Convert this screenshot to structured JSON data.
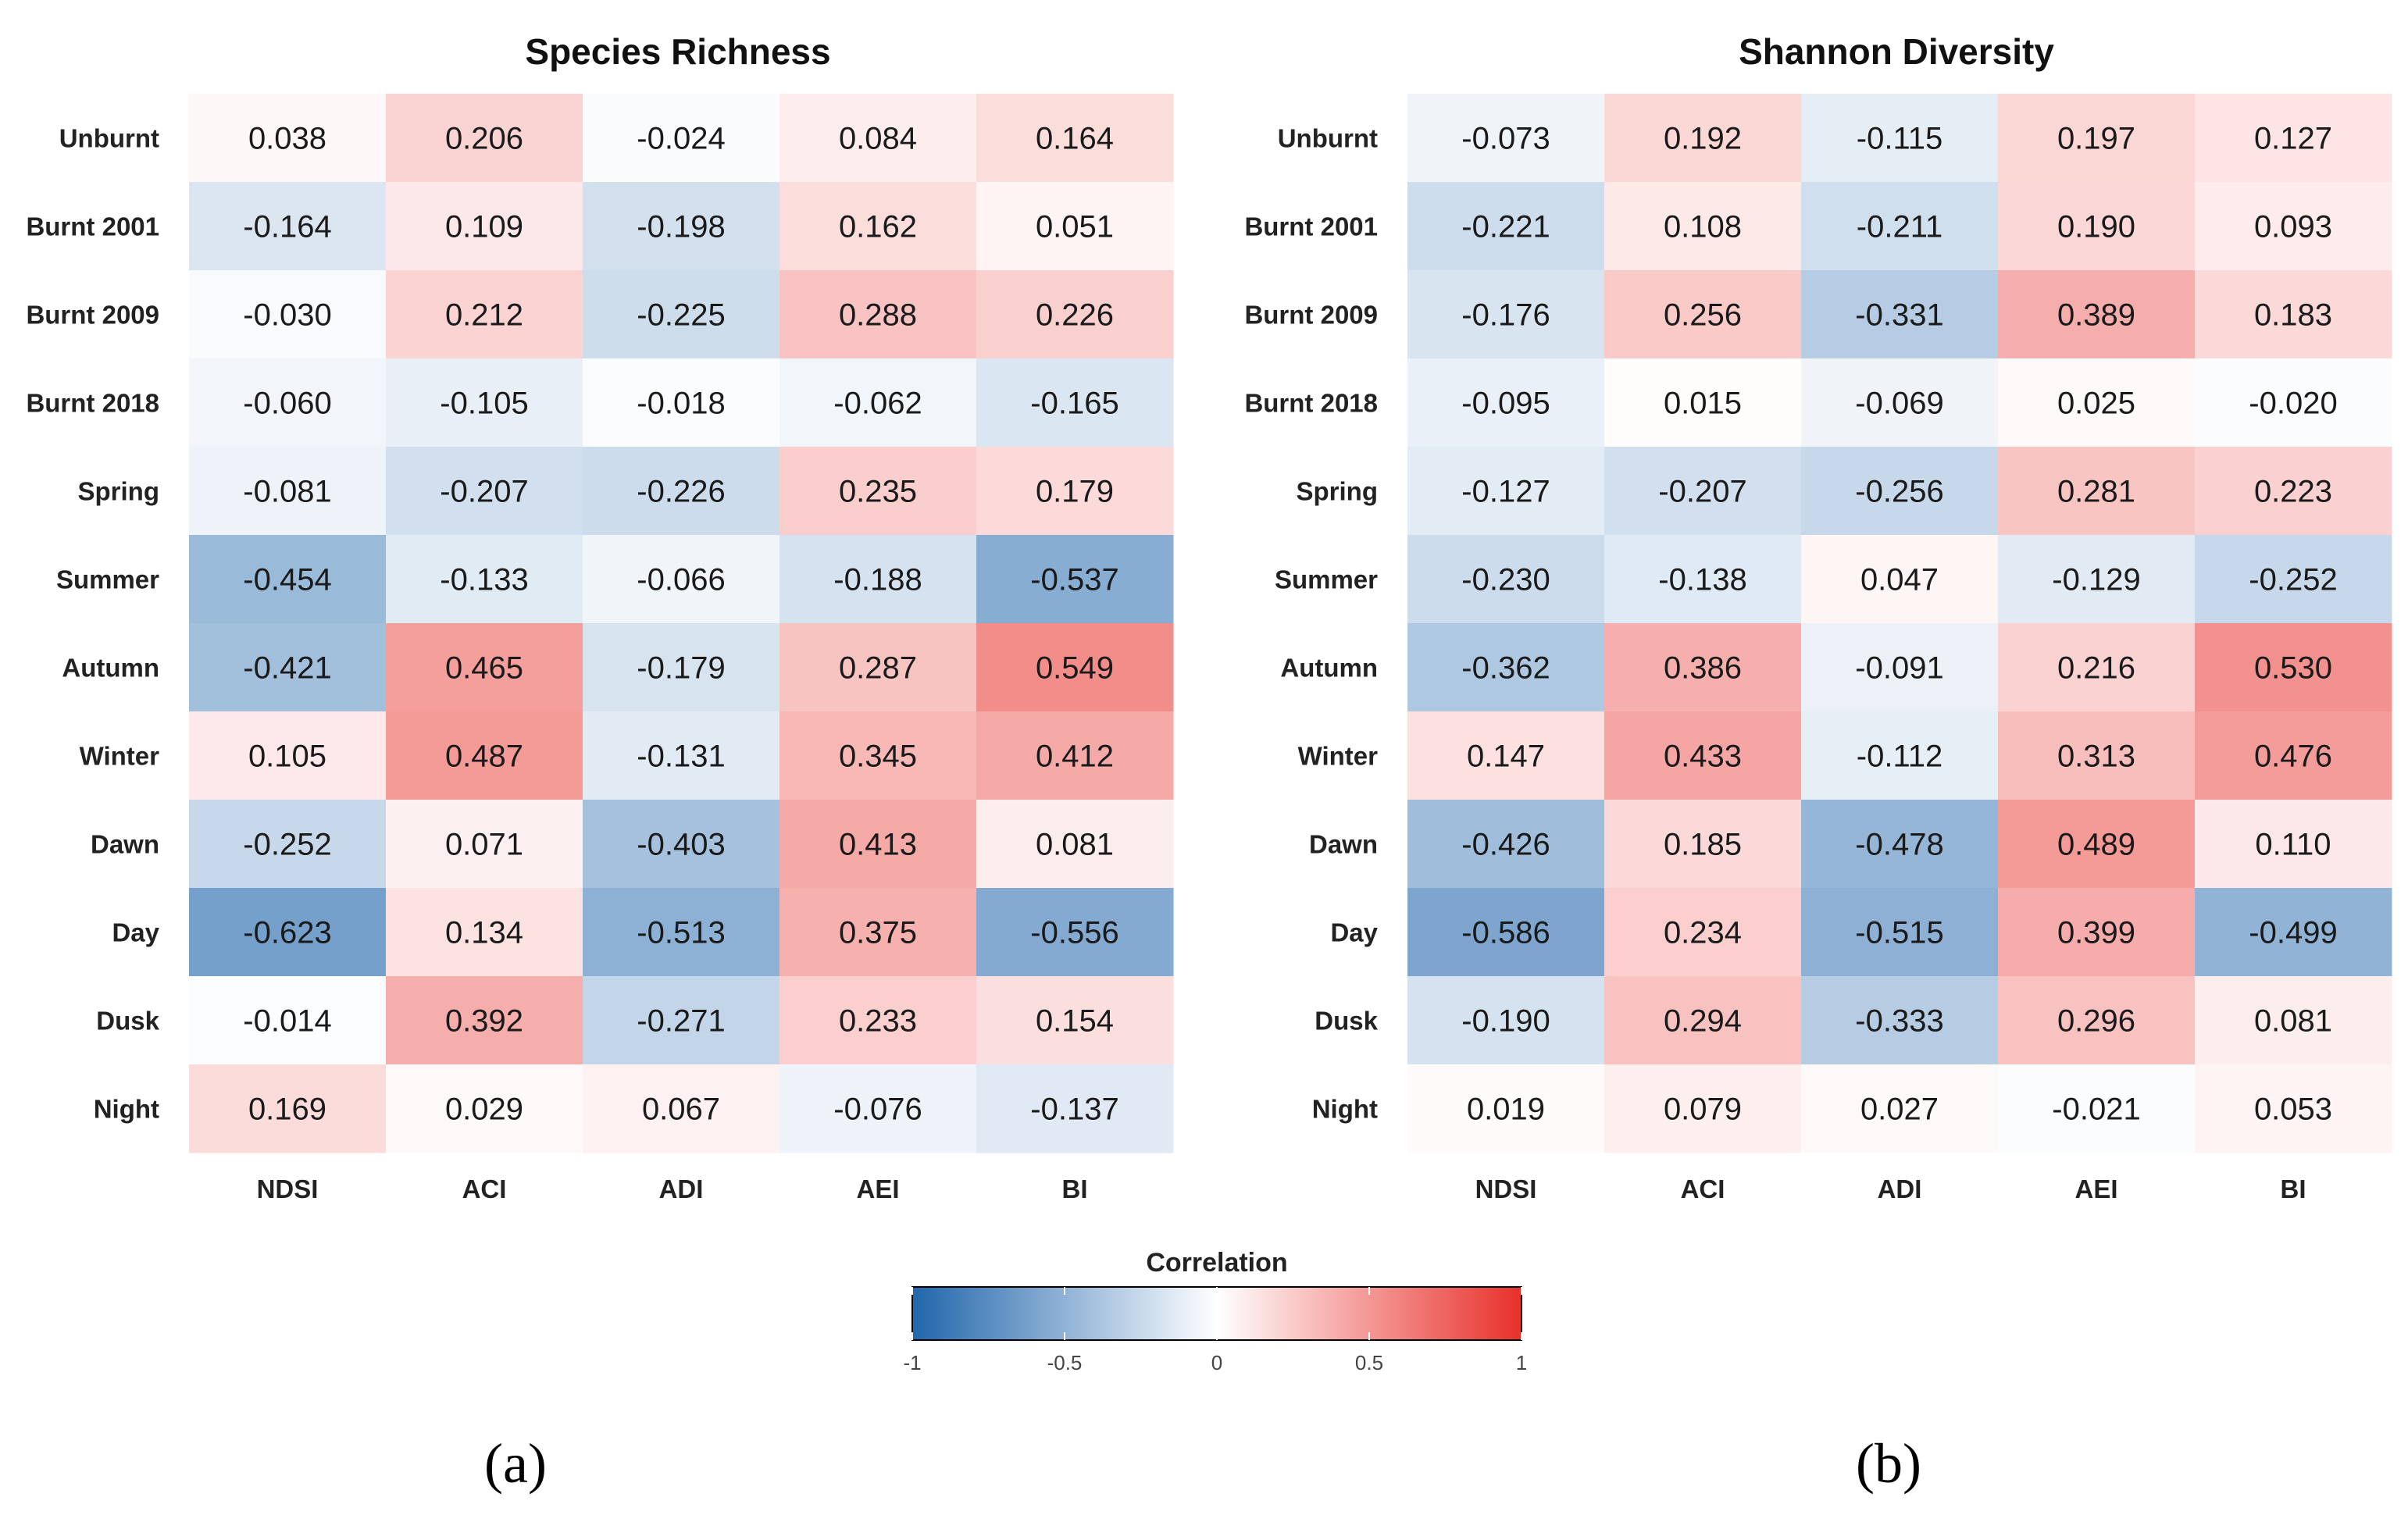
{
  "chart_data": [
    {
      "type": "heatmap",
      "title": "Species Richness",
      "sublabel": "(a)",
      "rows": [
        "Unburnt",
        "Burnt 2001",
        "Burnt 2009",
        "Burnt 2018",
        "Spring",
        "Summer",
        "Autumn",
        "Winter",
        "Dawn",
        "Day",
        "Dusk",
        "Night"
      ],
      "columns": [
        "NDSI",
        "ACI",
        "ADI",
        "AEI",
        "BI"
      ],
      "values": [
        [
          "0.038",
          "0.206",
          "-0.024",
          "0.084",
          "0.164"
        ],
        [
          "-0.164",
          "0.109",
          "-0.198",
          "0.162",
          "0.051"
        ],
        [
          "-0.030",
          "0.212",
          "-0.225",
          "0.288",
          "0.226"
        ],
        [
          "-0.060",
          "-0.105",
          "-0.018",
          "-0.062",
          "-0.165"
        ],
        [
          "-0.081",
          "-0.207",
          "-0.226",
          "0.235",
          "0.179"
        ],
        [
          "-0.454",
          "-0.133",
          "-0.066",
          "-0.188",
          "-0.537"
        ],
        [
          "-0.421",
          "0.465",
          "-0.179",
          "0.287",
          "0.549"
        ],
        [
          "0.105",
          "0.487",
          "-0.131",
          "0.345",
          "0.412"
        ],
        [
          "-0.252",
          "0.071",
          "-0.403",
          "0.413",
          "0.081"
        ],
        [
          "-0.623",
          "0.134",
          "-0.513",
          "0.375",
          "-0.556"
        ],
        [
          "-0.014",
          "0.392",
          "-0.271",
          "0.233",
          "0.154"
        ],
        [
          "0.169",
          "0.029",
          "0.067",
          "-0.076",
          "-0.137"
        ]
      ]
    },
    {
      "type": "heatmap",
      "title": "Shannon Diversity",
      "sublabel": "(b)",
      "rows": [
        "Unburnt",
        "Burnt 2001",
        "Burnt 2009",
        "Burnt 2018",
        "Spring",
        "Summer",
        "Autumn",
        "Winter",
        "Dawn",
        "Day",
        "Dusk",
        "Night"
      ],
      "columns": [
        "NDSI",
        "ACI",
        "ADI",
        "AEI",
        "BI"
      ],
      "values": [
        [
          "-0.073",
          "0.192",
          "-0.115",
          "0.197",
          "0.127"
        ],
        [
          "-0.221",
          "0.108",
          "-0.211",
          "0.190",
          "0.093"
        ],
        [
          "-0.176",
          "0.256",
          "-0.331",
          "0.389",
          "0.183"
        ],
        [
          "-0.095",
          "0.015",
          "-0.069",
          "0.025",
          "-0.020"
        ],
        [
          "-0.127",
          "-0.207",
          "-0.256",
          "0.281",
          "0.223"
        ],
        [
          "-0.230",
          "-0.138",
          "0.047",
          "-0.129",
          "-0.252"
        ],
        [
          "-0.362",
          "0.386",
          "-0.091",
          "0.216",
          "0.530"
        ],
        [
          "0.147",
          "0.433",
          "-0.112",
          "0.313",
          "0.476"
        ],
        [
          "-0.426",
          "0.185",
          "-0.478",
          "0.489",
          "0.110"
        ],
        [
          "-0.586",
          "0.234",
          "-0.515",
          "0.399",
          "-0.499"
        ],
        [
          "-0.190",
          "0.294",
          "-0.333",
          "0.296",
          "0.081"
        ],
        [
          "0.019",
          "0.079",
          "0.027",
          "-0.021",
          "0.053"
        ]
      ]
    }
  ],
  "legend": {
    "title": "Correlation",
    "range": [
      -1,
      1
    ],
    "ticks": [
      {
        "value": -1,
        "label": "-1"
      },
      {
        "value": -0.5,
        "label": "-0.5"
      },
      {
        "value": 0,
        "label": "0"
      },
      {
        "value": 0.5,
        "label": "0.5"
      },
      {
        "value": 1,
        "label": "1"
      }
    ],
    "colors": {
      "negative": "#2166ac",
      "neutral": "#ffffff",
      "positive": "#e8302a"
    }
  }
}
